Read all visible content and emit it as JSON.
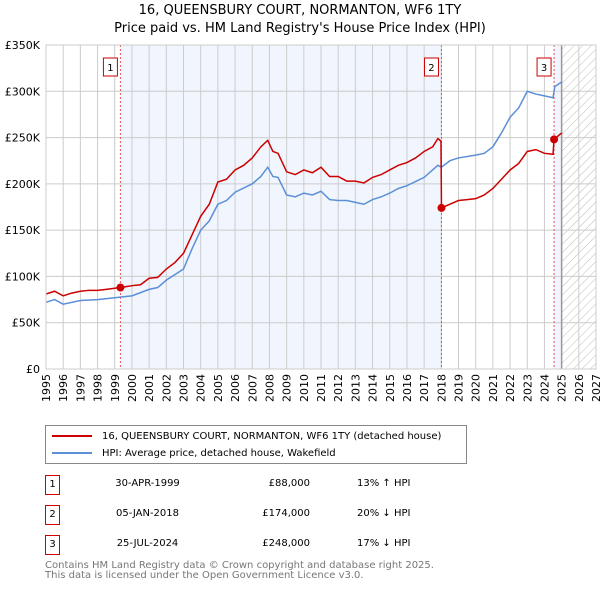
{
  "chart_data": {
    "type": "line",
    "title": "16, QUEENSBURY COURT, NORMANTON, WF6 1TY",
    "subtitle": "Price paid vs. HM Land Registry's House Price Index (HPI)",
    "xlim": [
      1995,
      2027
    ],
    "ylim": [
      0,
      350000
    ],
    "x_ticks": [
      "1995",
      "1996",
      "1997",
      "1998",
      "1999",
      "2000",
      "2001",
      "2002",
      "2003",
      "2004",
      "2005",
      "2006",
      "2007",
      "2008",
      "2009",
      "2010",
      "2011",
      "2012",
      "2013",
      "2014",
      "2015",
      "2016",
      "2017",
      "2018",
      "2019",
      "2020",
      "2021",
      "2022",
      "2023",
      "2024",
      "2025",
      "2026",
      "2027"
    ],
    "y_ticks": [
      {
        "v": 0,
        "label": "£0"
      },
      {
        "v": 50000,
        "label": "£50K"
      },
      {
        "v": 100000,
        "label": "£100K"
      },
      {
        "v": 150000,
        "label": "£150K"
      },
      {
        "v": 200000,
        "label": "£200K"
      },
      {
        "v": 250000,
        "label": "£250K"
      },
      {
        "v": 300000,
        "label": "£300K"
      },
      {
        "v": 350000,
        "label": "£350K"
      }
    ],
    "grid": true,
    "series": [
      {
        "name": "16, QUEENSBURY COURT, NORMANTON, WF6 1TY (detached house)",
        "color": "#cc0000",
        "x": [
          1995,
          1995.5,
          1996,
          1996.5,
          1997,
          1997.5,
          1998,
          1998.5,
          1999.33,
          2000,
          2000.5,
          2001,
          2001.5,
          2002,
          2002.5,
          2003,
          2003.5,
          2004,
          2004.5,
          2005,
          2005.5,
          2006,
          2006.5,
          2007,
          2007.5,
          2007.9,
          2008.2,
          2008.5,
          2009,
          2009.5,
          2010,
          2010.5,
          2011,
          2011.5,
          2012,
          2012.5,
          2013,
          2013.5,
          2014,
          2014.5,
          2015,
          2015.5,
          2016,
          2016.5,
          2017,
          2017.5,
          2017.8,
          2017.98,
          2018.01,
          2018.5,
          2019,
          2019.5,
          2020,
          2020.5,
          2021,
          2021.5,
          2022,
          2022.5,
          2023,
          2023.5,
          2024,
          2024.5,
          2024.56,
          2025
        ],
        "y": [
          81000,
          84000,
          79000,
          82000,
          84000,
          85000,
          85000,
          86000,
          88000,
          90000,
          91000,
          98000,
          99000,
          108000,
          115000,
          125000,
          145000,
          165000,
          178000,
          202000,
          205000,
          215000,
          220000,
          228000,
          240000,
          247000,
          235000,
          233000,
          213000,
          210000,
          215000,
          212000,
          218000,
          208000,
          208000,
          203000,
          203000,
          201000,
          207000,
          210000,
          215000,
          220000,
          223000,
          228000,
          235000,
          240000,
          249000,
          246000,
          174000,
          178000,
          182000,
          183000,
          184000,
          188000,
          195000,
          205000,
          215000,
          222000,
          235000,
          237000,
          233000,
          232000,
          248000,
          255000
        ]
      },
      {
        "name": "HPI: Average price, detached house, Wakefield",
        "color": "#5b8fd6",
        "x": [
          1995,
          1995.5,
          1996,
          1997,
          1998,
          1999,
          2000,
          2001,
          2001.5,
          2002,
          2002.5,
          2003,
          2003.5,
          2004,
          2004.5,
          2005,
          2005.5,
          2006,
          2007,
          2007.5,
          2007.9,
          2008.2,
          2008.5,
          2009,
          2009.5,
          2010,
          2010.5,
          2011,
          2011.5,
          2012,
          2012.5,
          2013,
          2013.5,
          2014,
          2014.5,
          2015,
          2015.5,
          2016,
          2017,
          2017.8,
          2018,
          2018.5,
          2019,
          2020,
          2020.5,
          2021,
          2021.5,
          2022,
          2022.5,
          2023,
          2023.5,
          2024,
          2024.5,
          2024.6,
          2025
        ],
        "y": [
          72000,
          75000,
          70000,
          74000,
          75000,
          77000,
          79000,
          86000,
          88000,
          96000,
          102000,
          108000,
          130000,
          150000,
          160000,
          178000,
          182000,
          191000,
          200000,
          208000,
          218000,
          208000,
          207000,
          188000,
          186000,
          190000,
          188000,
          192000,
          183000,
          182000,
          182000,
          180000,
          178000,
          183000,
          186000,
          190000,
          195000,
          198000,
          207000,
          220000,
          218000,
          225000,
          228000,
          231000,
          233000,
          240000,
          255000,
          272000,
          282000,
          300000,
          297000,
          295000,
          293000,
          305000,
          310000
        ]
      }
    ],
    "sales": [
      {
        "id": "1",
        "x": 1999.33,
        "y": 88000,
        "date": "30-APR-1999",
        "price": "£88,000",
        "hpi": "13% ↑ HPI"
      },
      {
        "id": "2",
        "x": 2018.01,
        "y": 174000,
        "date": "05-JAN-2018",
        "price": "£174,000",
        "hpi": "20% ↓ HPI"
      },
      {
        "id": "3",
        "x": 2024.56,
        "y": 248000,
        "date": "25-JUL-2024",
        "price": "£248,000",
        "hpi": "17% ↓ HPI"
      }
    ],
    "shaded": [
      [
        1999.33,
        2018.01
      ],
      [
        2024.56,
        2025
      ]
    ],
    "forecast_from": 2025,
    "legend_placement": "below"
  },
  "footer": {
    "line1": "Contains HM Land Registry data © Crown copyright and database right 2025.",
    "line2": "This data is licensed under the Open Government Licence v3.0."
  }
}
